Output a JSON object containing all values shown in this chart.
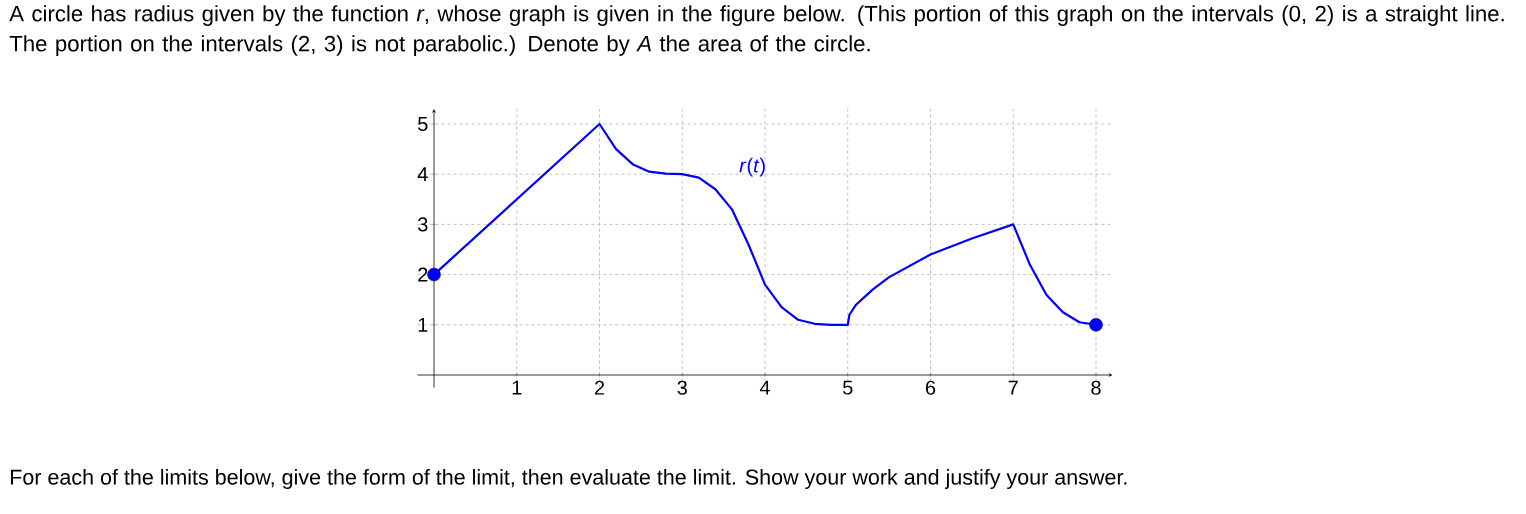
{
  "chart_data": {
    "type": "line",
    "title": "A circle has radius given by the function *r*, whose graph is given in the figure below. (This portion of this graph on the intervals (0, 2) is a straight line. The portion on the intervals (2, 3) is not parabolic.) Denote by *A* the area of the circle.",
    "annotations": [
      "For each of the limits below, give the form of the limit, then evaluate the limit. Show your work and justify your answer."
    ],
    "series": [
      {
        "name": "*r*(*t*)",
        "color": "#0000ff",
        "x": [
          0,
          2,
          2.2,
          2.4,
          2.6,
          2.8,
          3,
          3.2,
          3.4,
          3.6,
          3.8,
          4,
          4.2,
          4.4,
          4.6,
          4.8,
          5,
          5.02,
          5.1,
          5.3,
          5.5,
          6,
          6.5,
          7,
          7.2,
          7.4,
          7.6,
          7.8,
          8
        ],
        "values": [
          2,
          5,
          4.5,
          4.2,
          4.05,
          4.01,
          4,
          3.93,
          3.7,
          3.3,
          2.6,
          1.8,
          1.35,
          1.1,
          1.02,
          1,
          1,
          1.2,
          1.4,
          1.7,
          1.95,
          2.4,
          2.72,
          3,
          2.2,
          1.6,
          1.25,
          1.05,
          1
        ]
      },
      {
        "type": "scatter",
        "color": "#0000ff",
        "marker": "circle",
        "x": [
          0,
          8
        ],
        "values": [
          2,
          1
        ]
      }
    ],
    "xlim": [
      -0.2,
      8.2
    ],
    "ylim": [
      -0.25,
      5.3
    ],
    "xticks": [
      1,
      2,
      3,
      4,
      5,
      6,
      7,
      8
    ],
    "yticks": [
      1,
      2,
      3,
      4,
      5
    ],
    "grid": true,
    "line_style": "solid"
  }
}
